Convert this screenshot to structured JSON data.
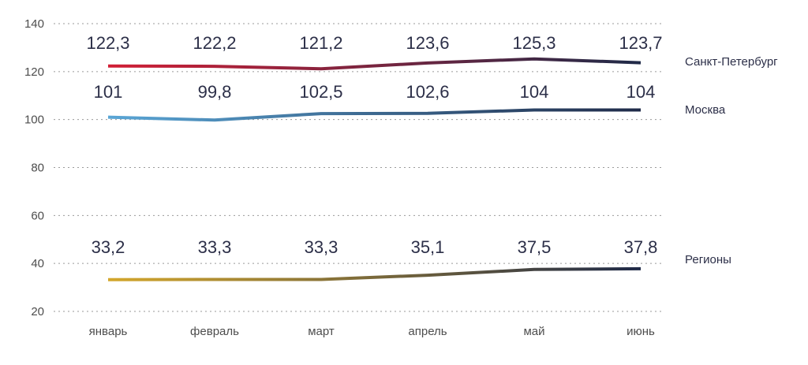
{
  "chart_data": {
    "type": "line",
    "categories": [
      "январь",
      "февраль",
      "март",
      "апрель",
      "май",
      "июнь"
    ],
    "ylim": [
      20,
      140
    ],
    "yticks": [
      20,
      40,
      60,
      80,
      100,
      120,
      140
    ],
    "grid": true,
    "legend": "right, labels at line ends",
    "series": [
      {
        "name": "Санкт-Петербург",
        "values": [
          122.3,
          122.2,
          121.2,
          123.6,
          125.3,
          123.7
        ],
        "labels": [
          "122,3",
          "122,2",
          "121,2",
          "123,6",
          "125,3",
          "123,7"
        ],
        "color_start": "#d21f36",
        "color_end": "#1f2a48"
      },
      {
        "name": "Москва",
        "values": [
          101,
          99.8,
          102.5,
          102.6,
          104,
          104
        ],
        "labels": [
          "101",
          "99,8",
          "102,5",
          "102,6",
          "104",
          "104"
        ],
        "color_start": "#5aa6d6",
        "color_end": "#1f2a48"
      },
      {
        "name": "Регионы",
        "values": [
          33.2,
          33.3,
          33.3,
          35.1,
          37.5,
          37.8
        ],
        "labels": [
          "33,2",
          "33,3",
          "33,3",
          "35,1",
          "37,5",
          "37,8"
        ],
        "color_start": "#d4a72c",
        "color_end": "#1f2a48"
      }
    ]
  }
}
